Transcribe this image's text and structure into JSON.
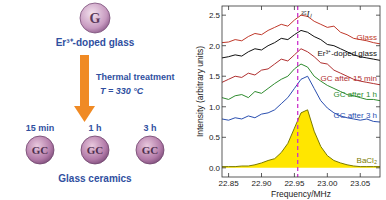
{
  "chart_data": {
    "type": "line",
    "x_label": "Frequency/MHz",
    "y_label": "Intensity (arbitrary units)",
    "annotations": [
      "³⁵Iₗ"
    ],
    "reference_line": {
      "x": 22.955,
      "color": "#cc33cc",
      "line_style": "dashed"
    },
    "x": [
      22.84,
      22.85,
      22.86,
      22.87,
      22.88,
      22.89,
      22.9,
      22.91,
      22.92,
      22.93,
      22.94,
      22.95,
      22.96,
      22.97,
      22.98,
      22.99,
      23.0,
      23.01,
      23.02,
      23.03,
      23.04,
      23.05,
      23.06,
      23.07,
      23.08
    ],
    "series": [
      {
        "name": "Glass",
        "color": "#c0392b",
        "values": [
          2.05,
          2.06,
          2.1,
          2.08,
          2.15,
          2.2,
          2.18,
          2.25,
          2.3,
          2.35,
          2.32,
          2.42,
          2.5,
          2.48,
          2.4,
          2.35,
          2.3,
          2.32,
          2.22,
          2.18,
          2.12,
          2.1,
          2.08,
          2.05,
          2.03
        ]
      },
      {
        "name": "Er³⁺-doped glass",
        "color": "#111111",
        "values": [
          1.8,
          1.82,
          1.85,
          1.83,
          1.9,
          1.95,
          1.93,
          2.0,
          2.05,
          2.12,
          2.1,
          2.18,
          2.25,
          2.22,
          2.15,
          2.1,
          2.02,
          2.0,
          1.95,
          1.9,
          1.85,
          1.82,
          1.8,
          1.78,
          1.76
        ]
      },
      {
        "name": "GC after 15 min",
        "color": "#b03030",
        "values": [
          1.4,
          1.45,
          1.5,
          1.48,
          1.55,
          1.52,
          1.6,
          1.62,
          1.7,
          1.78,
          1.75,
          1.85,
          1.95,
          1.9,
          1.82,
          1.72,
          1.7,
          1.6,
          1.55,
          1.5,
          1.45,
          1.42,
          1.4,
          1.38,
          1.36
        ]
      },
      {
        "name": "GC after 1 h",
        "color": "#2e8b2e",
        "values": [
          1.15,
          1.12,
          1.18,
          1.2,
          1.15,
          1.25,
          1.22,
          1.3,
          1.38,
          1.45,
          1.5,
          1.62,
          1.7,
          1.65,
          1.5,
          1.42,
          1.35,
          1.3,
          1.25,
          1.2,
          1.18,
          1.15,
          1.12,
          1.12,
          1.1
        ]
      },
      {
        "name": "GC after 3 h",
        "color": "#2a4fb0",
        "values": [
          0.8,
          0.78,
          0.82,
          0.8,
          0.85,
          0.82,
          0.88,
          0.9,
          0.95,
          1.05,
          1.15,
          1.3,
          1.45,
          1.5,
          1.3,
          1.1,
          0.98,
          0.9,
          0.85,
          0.82,
          0.8,
          0.78,
          0.8,
          0.76,
          0.75
        ]
      },
      {
        "name": "BaCl₂",
        "color": "#7a7a00",
        "type": "area",
        "values": [
          0.02,
          0.02,
          0.02,
          0.03,
          0.03,
          0.05,
          0.08,
          0.12,
          0.15,
          0.25,
          0.4,
          0.65,
          0.9,
          0.95,
          0.6,
          0.35,
          0.2,
          0.12,
          0.08,
          0.05,
          0.03,
          0.02,
          0.02,
          0.02,
          0.02
        ]
      }
    ],
    "xlim": [
      22.84,
      23.08
    ],
    "ylim": [
      -0.15,
      2.65
    ],
    "xticks": [
      22.85,
      {
        "value": 22.9,
        "label": "22.90"
      },
      22.95,
      {
        "value": 23.0,
        "label": "23.00"
      },
      23.05
    ],
    "yticks": [
      {
        "value": 0,
        "label": "0.0"
      },
      0.5,
      {
        "value": 1,
        "label": "1.0"
      },
      1.5,
      {
        "value": 2,
        "label": "2.0"
      },
      2.5
    ],
    "grid": false
  },
  "panel": {
    "glass_sample": "G",
    "glass_caption": "Er³⁺-doped glass",
    "treatment": "Thermal treatment",
    "temperature": "T = 330 °C",
    "samples": [
      {
        "time": "15 min",
        "label": "GC"
      },
      {
        "time": "1 h",
        "label": "GC"
      },
      {
        "time": "3 h",
        "label": "GC"
      }
    ],
    "ceramics_caption": "Glass ceramics"
  }
}
